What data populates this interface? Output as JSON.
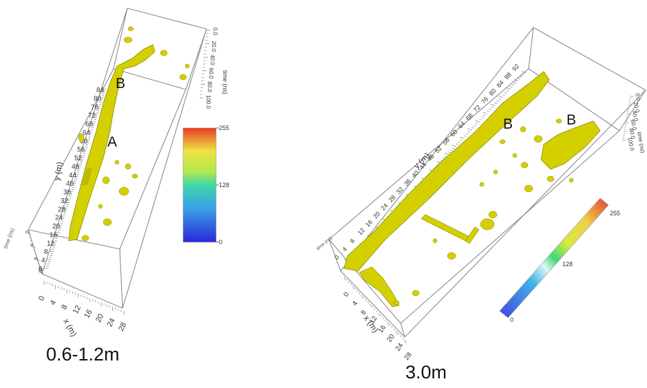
{
  "chart_data": [
    {
      "type": "3d-isosurface",
      "caption": "0.6-1.2m",
      "xlabel": "x (m)",
      "ylabel": "y (m)",
      "zlabel": "time (ns)",
      "x_ticks": [
        "0",
        "4",
        "8",
        "12",
        "16",
        "20",
        "24",
        "28"
      ],
      "y_ticks": [
        "0",
        "4",
        "8",
        "12",
        "16",
        "20",
        "24",
        "28",
        "32",
        "36",
        "40",
        "44",
        "48",
        "52",
        "56",
        "60",
        "64",
        "68",
        "72",
        "76",
        "80",
        "84"
      ],
      "z_ticks": [
        "0.0",
        "20.0",
        "40.0",
        "60.0",
        "80.0",
        "100.0"
      ],
      "colorbar": {
        "min": "0",
        "mid": "128",
        "max": "255"
      },
      "annotations": [
        "A",
        "B"
      ],
      "surface_color": "#d4d000"
    },
    {
      "type": "3d-isosurface",
      "caption": "3.0m",
      "xlabel": "x (m)",
      "ylabel": "y (m)",
      "zlabel": "time (ns)",
      "x_ticks": [
        "0",
        "4",
        "8",
        "12",
        "16",
        "20",
        "24",
        "28"
      ],
      "y_ticks": [
        "0",
        "4",
        "8",
        "12",
        "16",
        "20",
        "24",
        "28",
        "32",
        "36",
        "40",
        "44",
        "48",
        "52",
        "56",
        "60",
        "64",
        "68",
        "72",
        "76",
        "80",
        "84",
        "88",
        "92"
      ],
      "z_ticks": [
        "0.0",
        "20.0",
        "40.0",
        "60.0",
        "80.0",
        "100.0"
      ],
      "colorbar": {
        "min": "0",
        "mid": "128",
        "max": "255"
      },
      "annotations": [
        "B",
        "B"
      ],
      "surface_color": "#d4d000"
    }
  ]
}
